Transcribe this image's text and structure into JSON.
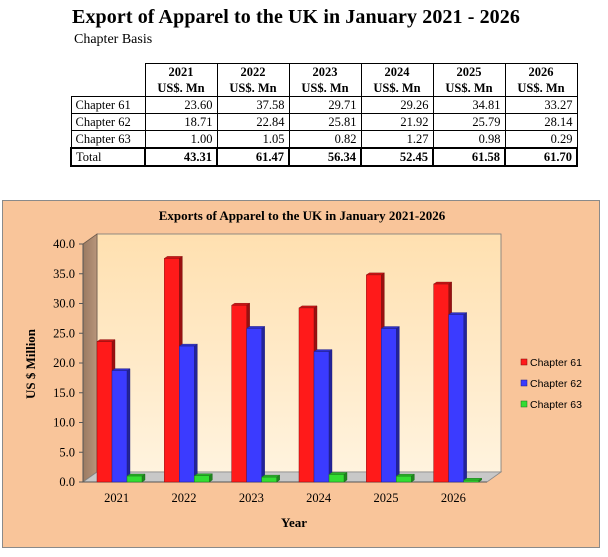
{
  "header": {
    "title": "Export of Apparel to the UK in January 2021 - 2026",
    "subtitle": "Chapter Basis"
  },
  "table": {
    "years": [
      "2021",
      "2022",
      "2023",
      "2024",
      "2025",
      "2026"
    ],
    "unit": "US$. Mn",
    "rows": [
      {
        "label": "Chapter 61",
        "values": [
          "23.60",
          "37.58",
          "29.71",
          "29.26",
          "34.81",
          "33.27"
        ]
      },
      {
        "label": "Chapter 62",
        "values": [
          "18.71",
          "22.84",
          "25.81",
          "21.92",
          "25.79",
          "28.14"
        ]
      },
      {
        "label": "Chapter 63",
        "values": [
          "1.00",
          "1.05",
          "0.82",
          "1.27",
          "0.98",
          "0.29"
        ]
      }
    ],
    "total": {
      "label": "Total",
      "values": [
        "43.31",
        "61.47",
        "56.34",
        "52.45",
        "61.58",
        "61.70"
      ]
    }
  },
  "chart_data": {
    "type": "bar",
    "title": "Exports of Apparel to the UK in January 2021-2026",
    "xlabel": "Year",
    "ylabel": "US $ Million",
    "ylim": [
      0,
      40
    ],
    "yticks": [
      "0.0",
      "5.0",
      "10.0",
      "15.0",
      "20.0",
      "25.0",
      "30.0",
      "35.0",
      "40.0"
    ],
    "categories": [
      "2021",
      "2022",
      "2023",
      "2024",
      "2025",
      "2026"
    ],
    "series": [
      {
        "name": "Chapter 61",
        "color": "#ff1a1a",
        "values": [
          23.6,
          37.58,
          29.71,
          29.26,
          34.81,
          33.27
        ]
      },
      {
        "name": "Chapter 62",
        "color": "#3b3bff",
        "values": [
          18.71,
          22.84,
          25.81,
          21.92,
          25.79,
          28.14
        ]
      },
      {
        "name": "Chapter 63",
        "color": "#33dd33",
        "values": [
          1.0,
          1.05,
          0.82,
          1.27,
          0.98,
          0.29
        ]
      }
    ],
    "legend": "right",
    "grid": false
  }
}
